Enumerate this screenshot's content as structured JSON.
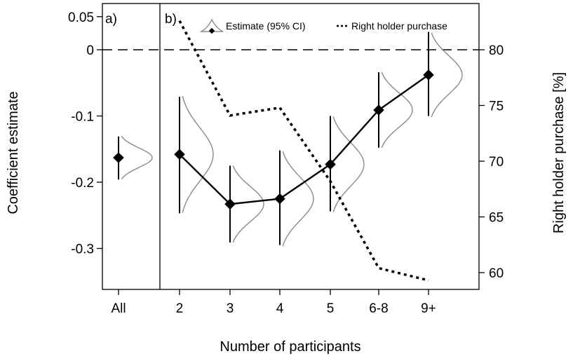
{
  "chart_data": {
    "type": "line",
    "panels": [
      {
        "label": "a)",
        "categories": [
          "All"
        ]
      },
      {
        "label": "b)",
        "categories": [
          "2",
          "3",
          "4",
          "5",
          "6-8",
          "9+"
        ]
      }
    ],
    "xlabel": "Number of participants",
    "ylabel_left": "Coefficient estimate",
    "ylabel_right": "Right holder purchase [%]",
    "left_axis": {
      "ylim": [
        -0.36,
        0.055
      ],
      "ticks": [
        0.05,
        0,
        -0.1,
        -0.2,
        -0.3
      ],
      "tick_labels": [
        "0.05",
        "0",
        "-0.1",
        "-0.2",
        "-0.3"
      ]
    },
    "right_axis": {
      "ylim": [
        58.8,
        83.4
      ],
      "ticks": [
        80,
        75,
        70,
        65,
        60
      ],
      "tick_labels": [
        "80",
        "75",
        "70",
        "65",
        "60"
      ]
    },
    "reference_line": {
      "y": 0,
      "style": "dashed"
    },
    "series": [
      {
        "name": "Estimate (95% CI)",
        "axis": "left",
        "style": "solid-with-diamonds-and-densities",
        "points": [
          {
            "x": "All",
            "estimate": -0.163,
            "ci_low": -0.196,
            "ci_high": -0.131,
            "connected": false
          },
          {
            "x": "2",
            "estimate": -0.158,
            "ci_low": -0.247,
            "ci_high": -0.071,
            "connected": true
          },
          {
            "x": "3",
            "estimate": -0.233,
            "ci_low": -0.291,
            "ci_high": -0.175,
            "connected": true
          },
          {
            "x": "4",
            "estimate": -0.225,
            "ci_low": -0.295,
            "ci_high": -0.152,
            "connected": true
          },
          {
            "x": "5",
            "estimate": -0.173,
            "ci_low": -0.244,
            "ci_high": -0.1,
            "connected": true
          },
          {
            "x": "6-8",
            "estimate": -0.091,
            "ci_low": -0.148,
            "ci_high": -0.034,
            "connected": true
          },
          {
            "x": "9+",
            "estimate": -0.038,
            "ci_low": -0.1,
            "ci_high": 0.027,
            "connected": true
          }
        ]
      },
      {
        "name": "Right holder purchase",
        "axis": "right",
        "style": "dotted",
        "x": [
          "2",
          "3",
          "4",
          "5",
          "6-8",
          "9+"
        ],
        "values": [
          82.6,
          74.1,
          74.8,
          68.2,
          60.4,
          59.3
        ]
      }
    ],
    "legend": {
      "placement": "top",
      "entries": [
        "Estimate (95% CI)",
        "Right holder purchase"
      ]
    }
  }
}
